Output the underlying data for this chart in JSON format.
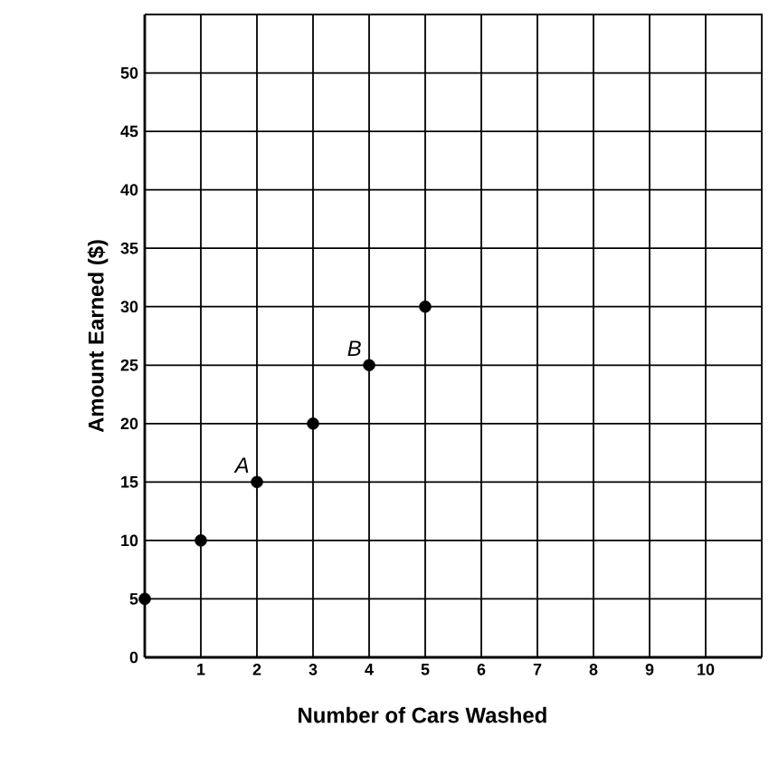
{
  "chart_data": {
    "type": "scatter",
    "xlabel": "Number of Cars Washed",
    "ylabel": "Amount Earned ($)",
    "x": [
      0,
      1,
      2,
      3,
      4,
      5
    ],
    "series": [
      {
        "color": "#000000",
        "values": [
          5,
          10,
          15,
          20,
          25,
          30
        ]
      }
    ],
    "xlim": [
      0,
      11
    ],
    "ylim": [
      0,
      55
    ],
    "xticks": [
      1,
      2,
      3,
      4,
      5,
      6,
      7,
      8,
      9,
      10
    ],
    "yticks": [
      0,
      5,
      10,
      15,
      20,
      25,
      30,
      35,
      40,
      45,
      50,
      {
        "value": 55,
        "label": null
      }
    ],
    "grid": true,
    "marker": "circle",
    "annotations": [
      {
        "text": "A",
        "x": 2,
        "y": 15
      },
      {
        "text": "B",
        "x": 4,
        "y": 25
      }
    ]
  }
}
